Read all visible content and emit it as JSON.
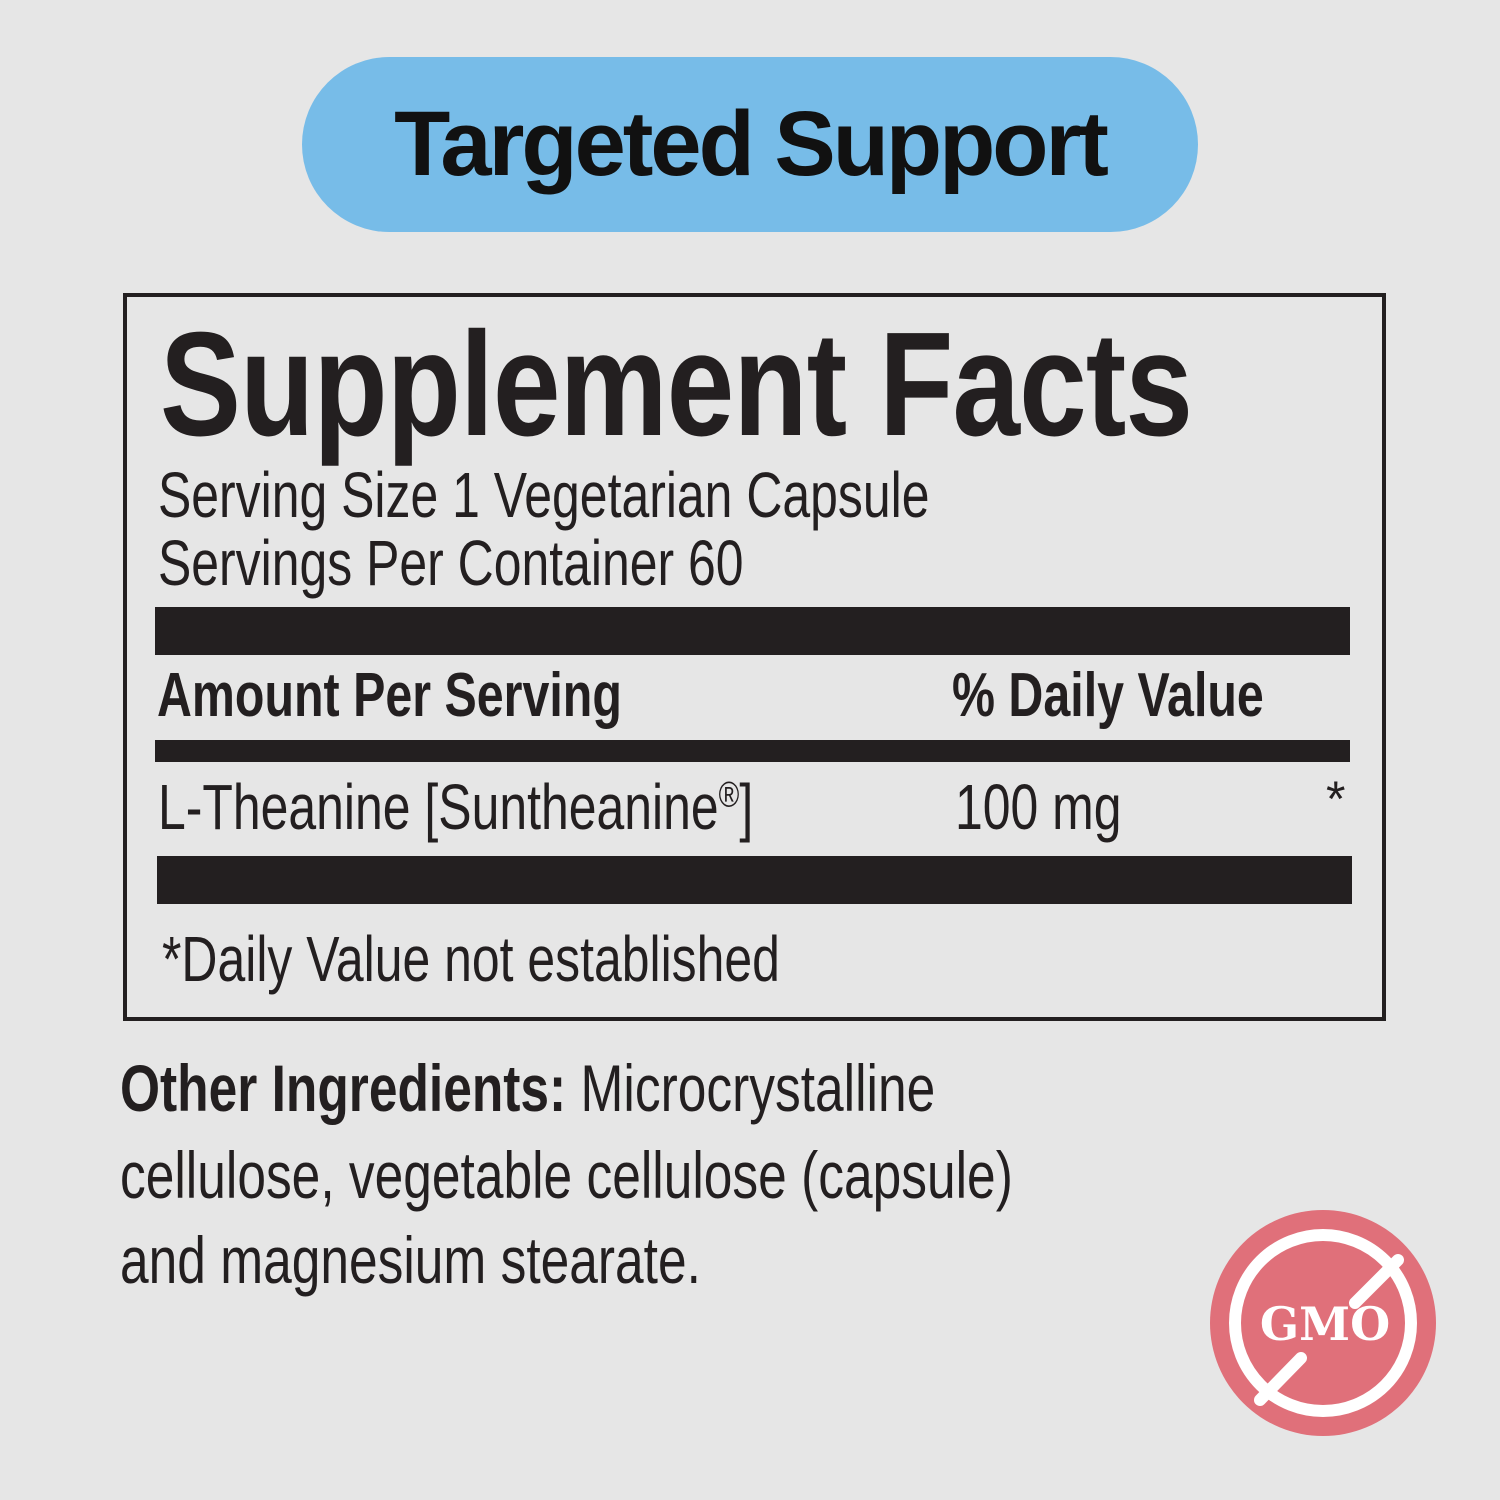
{
  "banner": {
    "label": "Targeted Support",
    "color": "#77bce8"
  },
  "facts": {
    "title": "Supplement Facts",
    "serving_size": "Serving Size 1 Vegetarian Capsule",
    "servings_per_container": "Servings Per Container 60",
    "header_amount": "Amount Per Serving",
    "header_dv": "% Daily Value",
    "rows": [
      {
        "name": "L-Theanine [Suntheanine",
        "reg_mark": "®",
        "name_end": "]",
        "amount": "100 mg",
        "dv": "*"
      }
    ],
    "footnote": "*Daily Value not established"
  },
  "other_ingredients": {
    "label": "Other Ingredients:",
    "line1": " Microcrystalline",
    "line2": "cellulose, vegetable cellulose (capsule)",
    "line3": "and magnesium stearate."
  },
  "badge": {
    "icon": "no-gmo-icon",
    "text": "GMO",
    "color": "#e0707a"
  }
}
